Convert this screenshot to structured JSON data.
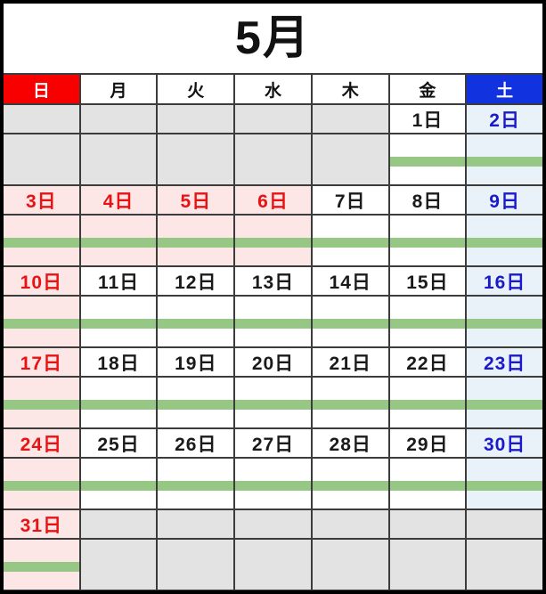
{
  "title": "5月",
  "weekday_header": [
    {
      "label": "日",
      "type": "sun"
    },
    {
      "label": "月",
      "type": "wd"
    },
    {
      "label": "火",
      "type": "wd"
    },
    {
      "label": "水",
      "type": "wd"
    },
    {
      "label": "木",
      "type": "wd"
    },
    {
      "label": "金",
      "type": "wd"
    },
    {
      "label": "土",
      "type": "sat"
    }
  ],
  "weeks": [
    {
      "days": [
        {
          "label": "",
          "bg": "gray",
          "color": "black",
          "bar": false
        },
        {
          "label": "",
          "bg": "gray",
          "color": "black",
          "bar": false
        },
        {
          "label": "",
          "bg": "gray",
          "color": "black",
          "bar": false
        },
        {
          "label": "",
          "bg": "gray",
          "color": "black",
          "bar": false
        },
        {
          "label": "",
          "bg": "gray",
          "color": "black",
          "bar": false
        },
        {
          "label": "1日",
          "bg": "white",
          "color": "black",
          "bar": true
        },
        {
          "label": "2日",
          "bg": "lightblue",
          "color": "blue",
          "bar": true
        }
      ]
    },
    {
      "days": [
        {
          "label": "3日",
          "bg": "pink",
          "color": "red",
          "bar": true
        },
        {
          "label": "4日",
          "bg": "pink",
          "color": "red",
          "bar": true
        },
        {
          "label": "5日",
          "bg": "pink",
          "color": "red",
          "bar": true
        },
        {
          "label": "6日",
          "bg": "pink",
          "color": "red",
          "bar": true
        },
        {
          "label": "7日",
          "bg": "white",
          "color": "black",
          "bar": true
        },
        {
          "label": "8日",
          "bg": "white",
          "color": "black",
          "bar": true
        },
        {
          "label": "9日",
          "bg": "lightblue",
          "color": "blue",
          "bar": true
        }
      ]
    },
    {
      "days": [
        {
          "label": "10日",
          "bg": "pink",
          "color": "red",
          "bar": true
        },
        {
          "label": "11日",
          "bg": "white",
          "color": "black",
          "bar": true
        },
        {
          "label": "12日",
          "bg": "white",
          "color": "black",
          "bar": true
        },
        {
          "label": "13日",
          "bg": "white",
          "color": "black",
          "bar": true
        },
        {
          "label": "14日",
          "bg": "white",
          "color": "black",
          "bar": true
        },
        {
          "label": "15日",
          "bg": "white",
          "color": "black",
          "bar": true
        },
        {
          "label": "16日",
          "bg": "lightblue",
          "color": "blue",
          "bar": true
        }
      ]
    },
    {
      "days": [
        {
          "label": "17日",
          "bg": "pink",
          "color": "red",
          "bar": true
        },
        {
          "label": "18日",
          "bg": "white",
          "color": "black",
          "bar": true
        },
        {
          "label": "19日",
          "bg": "white",
          "color": "black",
          "bar": true
        },
        {
          "label": "20日",
          "bg": "white",
          "color": "black",
          "bar": true
        },
        {
          "label": "21日",
          "bg": "white",
          "color": "black",
          "bar": true
        },
        {
          "label": "22日",
          "bg": "white",
          "color": "black",
          "bar": true
        },
        {
          "label": "23日",
          "bg": "lightblue",
          "color": "blue",
          "bar": true
        }
      ]
    },
    {
      "days": [
        {
          "label": "24日",
          "bg": "pink",
          "color": "red",
          "bar": true
        },
        {
          "label": "25日",
          "bg": "white",
          "color": "black",
          "bar": true
        },
        {
          "label": "26日",
          "bg": "white",
          "color": "black",
          "bar": true
        },
        {
          "label": "27日",
          "bg": "white",
          "color": "black",
          "bar": true
        },
        {
          "label": "28日",
          "bg": "white",
          "color": "black",
          "bar": true
        },
        {
          "label": "29日",
          "bg": "white",
          "color": "black",
          "bar": true
        },
        {
          "label": "30日",
          "bg": "lightblue",
          "color": "blue",
          "bar": true
        }
      ]
    },
    {
      "days": [
        {
          "label": "31日",
          "bg": "pink",
          "color": "red",
          "bar": true
        },
        {
          "label": "",
          "bg": "gray",
          "color": "black",
          "bar": false
        },
        {
          "label": "",
          "bg": "gray",
          "color": "black",
          "bar": false
        },
        {
          "label": "",
          "bg": "gray",
          "color": "black",
          "bar": false
        },
        {
          "label": "",
          "bg": "gray",
          "color": "black",
          "bar": false
        },
        {
          "label": "",
          "bg": "gray",
          "color": "black",
          "bar": false
        },
        {
          "label": "",
          "bg": "gray",
          "color": "black",
          "bar": false
        }
      ]
    }
  ],
  "colors": {
    "sunday_header_bg": "#F80000",
    "saturday_header_bg": "#1132DF",
    "holiday_cell_bg": "#FCE6E6",
    "saturday_cell_bg": "#E9F1F9",
    "empty_cell_bg": "#E3E3E3",
    "event_bar_green": "#96C784",
    "holiday_text_red": "#E91212",
    "saturday_text_blue": "#1A1AC8",
    "date_text_black": "#1A1A1A",
    "grid_line": "#3C3C3C"
  }
}
